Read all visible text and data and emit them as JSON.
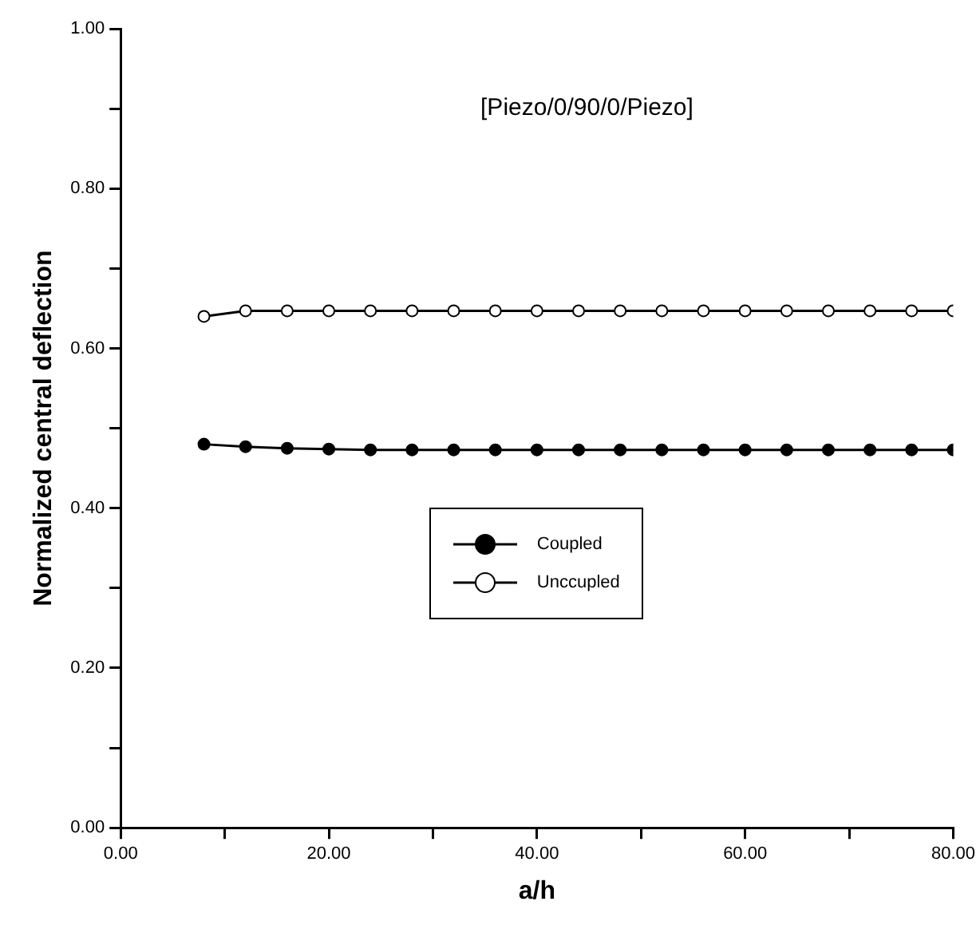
{
  "chart_data": {
    "type": "line",
    "title": "[Piezo/0/90/0/Piezo]",
    "xlabel": "a/h",
    "ylabel": "Normalized central deflection",
    "x": [
      8,
      12,
      16,
      20,
      24,
      28,
      32,
      36,
      40,
      44,
      48,
      52,
      56,
      60,
      64,
      68,
      72,
      76,
      80
    ],
    "series": [
      {
        "name": "Coupled",
        "color": "#000000",
        "marker": "circle",
        "values": [
          0.48,
          0.477,
          0.475,
          0.474,
          0.473,
          0.473,
          0.473,
          0.473,
          0.473,
          0.473,
          0.473,
          0.473,
          0.473,
          0.473,
          0.473,
          0.473,
          0.473,
          0.473,
          0.473
        ]
      },
      {
        "name": "Unccupled",
        "color": "#000000",
        "marker": "circle",
        "values": [
          0.64,
          0.647,
          0.647,
          0.647,
          0.647,
          0.647,
          0.647,
          0.647,
          0.647,
          0.647,
          0.647,
          0.647,
          0.647,
          0.647,
          0.647,
          0.647,
          0.647,
          0.647,
          0.647
        ]
      }
    ],
    "xlim": [
      0,
      80
    ],
    "xticks": [
      {
        "value": 0,
        "label": "0.00"
      },
      {
        "value": 10,
        "label": null
      },
      {
        "value": 20,
        "label": "20.00"
      },
      {
        "value": 30,
        "label": null
      },
      {
        "value": 40,
        "label": "40.00"
      },
      {
        "value": 50,
        "label": null
      },
      {
        "value": 60,
        "label": "60.00"
      },
      {
        "value": 70,
        "label": null
      },
      {
        "value": 80,
        "label": "80.00"
      }
    ],
    "ylim": [
      0,
      1
    ],
    "yticks": [
      {
        "value": 0,
        "label": "0.00"
      },
      {
        "value": 0.1,
        "label": null
      },
      {
        "value": 0.2,
        "label": "0.20"
      },
      {
        "value": 0.3,
        "label": null
      },
      {
        "value": 0.4,
        "label": "0.40"
      },
      {
        "value": 0.5,
        "label": null
      },
      {
        "value": 0.6,
        "label": "0.60"
      },
      {
        "value": 0.7,
        "label": null
      },
      {
        "value": 0.8,
        "label": "0.80"
      },
      {
        "value": 0.9,
        "label": null
      },
      {
        "value": 1,
        "label": "1.00"
      }
    ],
    "grid": false,
    "legend": "center",
    "line_style": "solid"
  }
}
